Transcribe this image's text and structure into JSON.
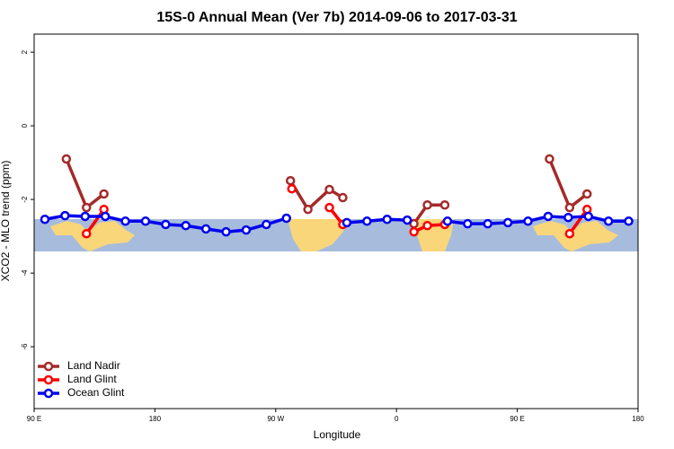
{
  "chart_data": {
    "type": "line",
    "title": "15S-0 Annual Mean (Ver 7b)   2014-09-06 to 2017-03-31",
    "xlabel": "Longitude",
    "ylabel": "XCO2 - MLO trend (ppm)",
    "xlim": [
      90,
      540
    ],
    "ylim": [
      -7.68,
      2.49
    ],
    "xticks": [
      {
        "value": 90,
        "label": "90 E"
      },
      180,
      {
        "value": 270,
        "label": "90 W"
      },
      {
        "value": 360,
        "label": "0"
      },
      {
        "value": 450,
        "label": "90 E"
      },
      {
        "value": 540,
        "label": "180"
      }
    ],
    "yticks": [
      2,
      0,
      -2,
      -4,
      -6
    ],
    "legend": "bottom-left",
    "series": [
      {
        "name": "Land Nadir",
        "color": "#a52a2a",
        "x": [
          114,
          129,
          142,
          200,
          281,
          294,
          310,
          320,
          350,
          373,
          383,
          396,
          430,
          474,
          489,
          502
        ],
        "values": [
          -0.9,
          -2.22,
          -1.85,
          null,
          -1.49,
          -2.27,
          -1.73,
          -1.95,
          null,
          -2.66,
          -2.15,
          -2.15,
          null,
          -0.9,
          -2.22,
          -1.85
        ]
      },
      {
        "name": "Land Glint",
        "color": "#ff0000",
        "x": [
          129,
          142,
          200,
          282,
          295,
          310,
          320,
          350,
          373,
          383,
          396,
          430,
          489,
          502
        ],
        "values": [
          -2.93,
          -2.27,
          null,
          -1.71,
          null,
          -2.22,
          -2.68,
          null,
          -2.88,
          -2.71,
          -2.68,
          null,
          -2.93,
          -2.27
        ]
      },
      {
        "name": "Ocean Glint",
        "color": "#0000ee",
        "x": [
          98,
          113,
          128,
          143,
          158,
          173,
          188,
          203,
          218,
          233,
          248,
          263,
          278,
          293,
          323,
          338,
          353,
          368,
          383,
          398,
          413,
          428,
          443,
          458,
          473,
          488,
          503,
          518,
          533
        ],
        "values": [
          -2.54,
          -2.44,
          -2.46,
          -2.46,
          -2.59,
          -2.59,
          -2.68,
          -2.71,
          -2.8,
          -2.88,
          -2.83,
          -2.68,
          -2.51,
          null,
          -2.63,
          -2.59,
          -2.54,
          -2.56,
          null,
          -2.59,
          -2.66,
          -2.66,
          -2.63,
          -2.59,
          -2.46,
          -2.49,
          -2.46,
          -2.59,
          -2.59
        ]
      }
    ]
  }
}
